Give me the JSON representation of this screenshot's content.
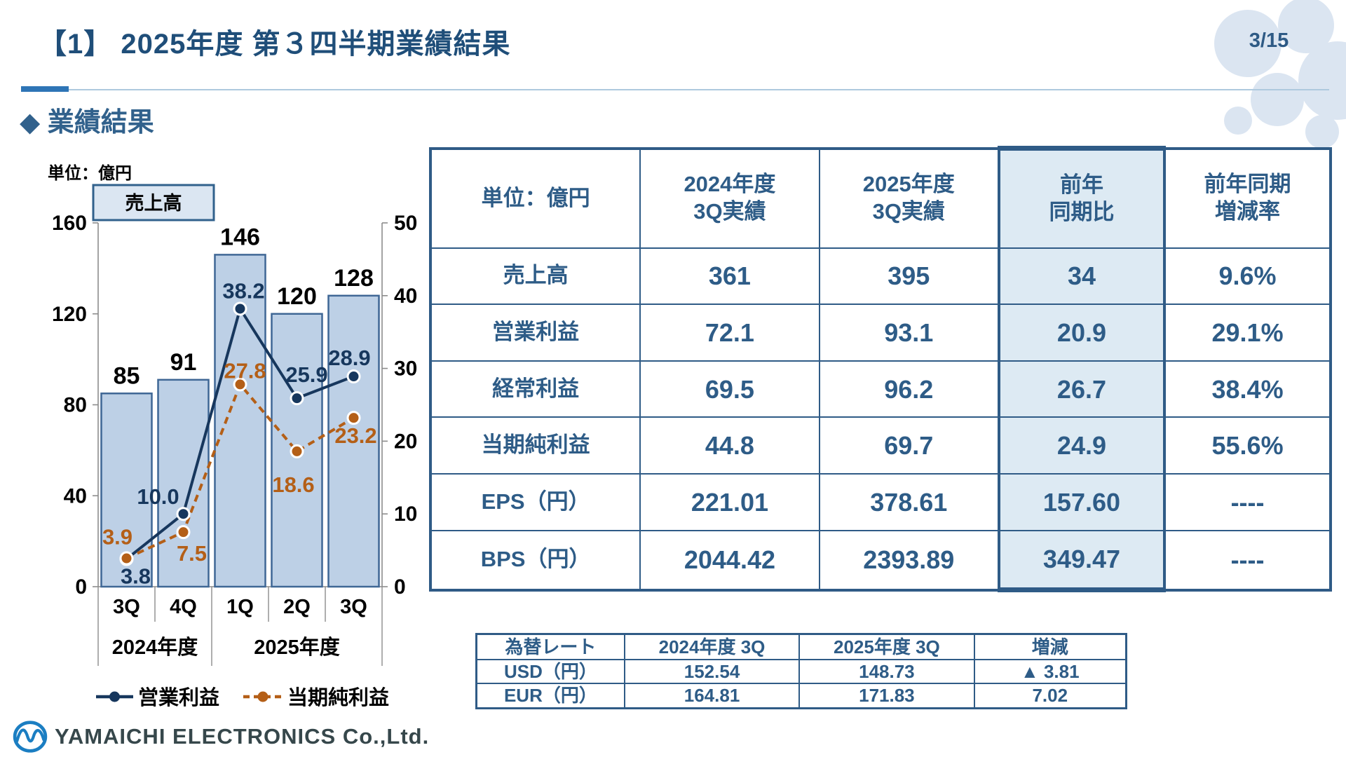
{
  "page": {
    "title": "【1】 2025年度 第３四半期業績結果",
    "page_number": "3/15",
    "section_heading": "◆ 業績結果",
    "footer_logo_text": "YAMAICHI ELECTRONICS Co.,Ltd."
  },
  "colors": {
    "title_navy": "#1f4e79",
    "accent_bar": "#2e75b6",
    "heading_blue": "#31618c",
    "table_text": "#2e5c87",
    "table_border": "#2f5b86",
    "highlight_fill": "#ddeaf3",
    "bar_fill": "#bdd0e6",
    "bar_border": "#3f6795",
    "line_navy": "#17375d",
    "line_orange": "#b45f17",
    "blob_blue": "#dbe5f1",
    "logo_blue": "#1b7ec2"
  },
  "chart_data": {
    "type": "bar",
    "subtype": "combo-bar-line-dual-axis",
    "unit_label": "単位：億円",
    "bar_series_box_label": "売上高",
    "categories": [
      "3Q",
      "4Q",
      "1Q",
      "2Q",
      "3Q"
    ],
    "category_groups": [
      {
        "label": "2024年度",
        "span": 2
      },
      {
        "label": "2025年度",
        "span": 3
      }
    ],
    "bars": {
      "name": "売上高",
      "values": [
        85,
        91,
        146,
        120,
        128
      ],
      "labels": [
        "85",
        "91",
        "146",
        "120",
        "128"
      ],
      "axis": "left"
    },
    "series": [
      {
        "name": "営業利益",
        "values": [
          3.8,
          10.0,
          38.2,
          25.9,
          28.9
        ],
        "labels": [
          "3.8",
          "10.0",
          "38.2",
          "25.9",
          "28.9"
        ],
        "style": "solid",
        "axis": "right"
      },
      {
        "name": "当期純利益",
        "values": [
          3.9,
          7.5,
          27.8,
          18.6,
          23.2
        ],
        "labels": [
          "3.9",
          "7.5",
          "27.8",
          "18.6",
          "23.2"
        ],
        "style": "dashed",
        "axis": "right"
      }
    ],
    "left_axis": {
      "min": 0,
      "max": 160,
      "ticks": [
        0,
        40,
        80,
        120,
        160
      ]
    },
    "right_axis": {
      "min": 0,
      "max": 50,
      "ticks": [
        0,
        10,
        20,
        30,
        40,
        50
      ]
    },
    "grid": false,
    "legend_position": "bottom"
  },
  "main_table": {
    "headers": [
      [
        "単位：億円"
      ],
      [
        "2024年度",
        "3Q実績"
      ],
      [
        "2025年度",
        "3Q実績"
      ],
      [
        "前年",
        "同期比"
      ],
      [
        "前年同期",
        "増減率"
      ]
    ],
    "highlight_column": 2,
    "rows": [
      {
        "label": "売上高",
        "values": [
          "361",
          "395",
          "34",
          "9.6%"
        ]
      },
      {
        "label": "営業利益",
        "values": [
          "72.1",
          "93.1",
          "20.9",
          "29.1%"
        ]
      },
      {
        "label": "経常利益",
        "values": [
          "69.5",
          "96.2",
          "26.7",
          "38.4%"
        ]
      },
      {
        "label": "当期純利益",
        "values": [
          "44.8",
          "69.7",
          "24.9",
          "55.6%"
        ]
      },
      {
        "label": "EPS（円）",
        "values": [
          "221.01",
          "378.61",
          "157.60",
          "----"
        ]
      },
      {
        "label": "BPS（円）",
        "values": [
          "2044.42",
          "2393.89",
          "349.47",
          "----"
        ]
      }
    ]
  },
  "fx_table": {
    "headers": [
      "為替レート",
      "2024年度 3Q",
      "2025年度 3Q",
      "増減"
    ],
    "rows": [
      {
        "label": "USD（円）",
        "values": [
          "152.54",
          "148.73",
          "▲ 3.81"
        ]
      },
      {
        "label": "EUR（円）",
        "values": [
          "164.81",
          "171.83",
          "7.02"
        ]
      }
    ]
  }
}
